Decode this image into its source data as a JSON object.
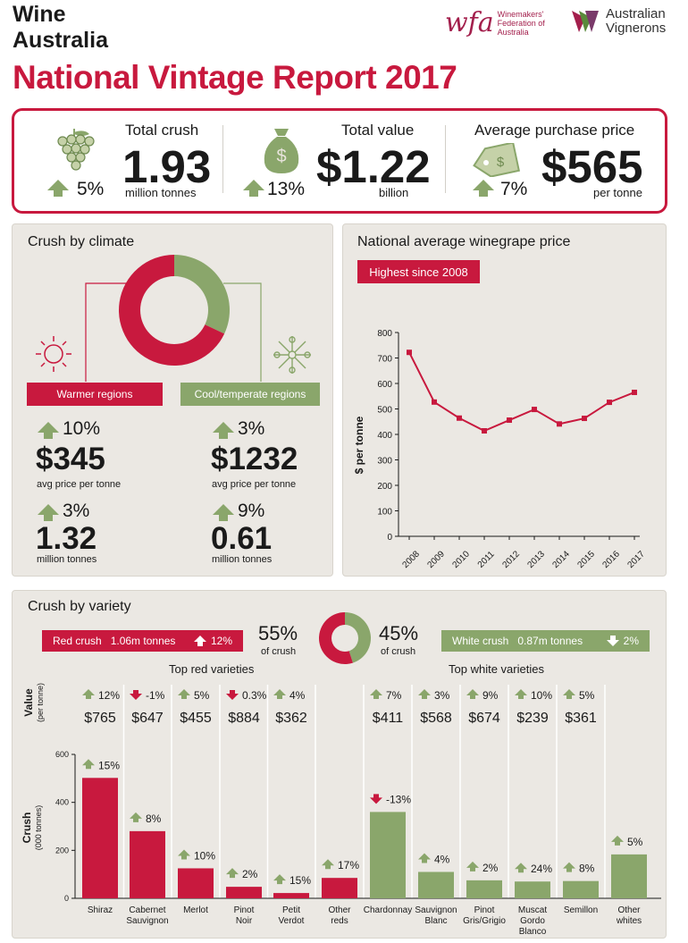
{
  "header": {
    "brand_line1": "Wine",
    "brand_line2": "Australia",
    "title": "National Vintage Report 2017",
    "wfa_mark": "wfa",
    "wfa_text": [
      "Winemakers'",
      "Federation of",
      "Australia"
    ],
    "av_text": [
      "Australian",
      "Vignerons"
    ]
  },
  "kpis": [
    {
      "label": "Total crush",
      "value": "1.93",
      "unit": "million tonnes",
      "change": "5%",
      "direction": "up",
      "icon": "grapes-icon"
    },
    {
      "label": "Total value",
      "value": "$1.22",
      "unit": "billion",
      "change": "13%",
      "direction": "up",
      "icon": "money-bag-icon"
    },
    {
      "label": "Average purchase price",
      "value": "$565",
      "unit": "per tonne",
      "change": "7%",
      "direction": "up",
      "icon": "price-tag-icon"
    }
  ],
  "climate": {
    "title": "Crush by climate",
    "warm": {
      "label": "Warmer regions",
      "price_change": "10%",
      "price": "$345",
      "price_label": "avg price per tonne",
      "crush_change": "3%",
      "crush": "1.32",
      "crush_label": "million tonnes"
    },
    "cool": {
      "label": "Cool/temperate regions",
      "price_change": "3%",
      "price": "$1232",
      "price_label": "avg price per tonne",
      "crush_change": "9%",
      "crush": "0.61",
      "crush_label": "million tonnes"
    }
  },
  "price_panel": {
    "title": "National average winegrape price",
    "badge": "Highest since 2008"
  },
  "variety": {
    "title": "Crush by variety",
    "red_pill": {
      "label": "Red crush",
      "amount": "1.06m tonnes",
      "change": "12%"
    },
    "white_pill": {
      "label": "White crush",
      "amount": "0.87m tonnes",
      "change": "2%"
    },
    "red_share": "55%",
    "white_share": "45%",
    "share_label": "of crush",
    "top_red": "Top red varieties",
    "top_white": "Top white varieties",
    "value_axis": "Value",
    "value_axis_sub": "(per tonne)",
    "crush_axis": "Crush",
    "crush_axis_sub": "(000 tonnes)"
  },
  "colors": {
    "red": "#c8193e",
    "green": "#8aa66b",
    "panel": "#ebe8e3"
  },
  "chart_data": [
    {
      "type": "pie",
      "id": "climate-donut",
      "title": "",
      "slices": [
        {
          "name": "Warmer regions",
          "value": 68,
          "color": "#c8193e"
        },
        {
          "name": "Cool/temperate regions",
          "value": 32,
          "color": "#8aa66b"
        }
      ]
    },
    {
      "type": "line",
      "id": "price-line",
      "title": "National average winegrape price",
      "xlabel": "",
      "ylabel": "$ per tonne",
      "ylim": [
        0,
        800
      ],
      "yticks": [
        0,
        100,
        200,
        300,
        400,
        500,
        600,
        700,
        800
      ],
      "x": [
        "2008",
        "2009",
        "2010",
        "2011",
        "2012",
        "2013",
        "2014",
        "2015",
        "2016",
        "2017"
      ],
      "values": [
        722,
        527,
        464,
        414,
        456,
        498,
        441,
        463,
        526,
        565
      ]
    },
    {
      "type": "pie",
      "id": "variety-donut",
      "slices": [
        {
          "name": "Red crush",
          "value": 55,
          "color": "#c8193e"
        },
        {
          "name": "White crush",
          "value": 45,
          "color": "#8aa66b"
        }
      ]
    },
    {
      "type": "bar",
      "id": "variety-bars",
      "ylabel": "Crush (000 tonnes)",
      "ylim": [
        0,
        600
      ],
      "yticks": [
        0,
        200,
        400,
        600
      ],
      "categories": [
        "Shiraz",
        "Cabernet Sauvignon",
        "Merlot",
        "Pinot Noir",
        "Petit Verdot",
        "Other reds",
        "Chardonnay",
        "Sauvignon Blanc",
        "Pinot Gris/Grigio",
        "Muscat Gordo Blanco",
        "Semillon",
        "Other whites"
      ],
      "labels": [
        [
          "Shiraz"
        ],
        [
          "Cabernet",
          "Sauvignon"
        ],
        [
          "Merlot"
        ],
        [
          "Pinot",
          "Noir"
        ],
        [
          "Petit",
          "Verdot"
        ],
        [
          "Other",
          "reds"
        ],
        [
          "Chardonnay"
        ],
        [
          "Sauvignon",
          "Blanc"
        ],
        [
          "Pinot",
          "Gris/Grigio"
        ],
        [
          "Muscat",
          "Gordo",
          "Blanco"
        ],
        [
          "Semillon"
        ],
        [
          "Other",
          "whites"
        ]
      ],
      "values": [
        502,
        280,
        125,
        48,
        22,
        85,
        360,
        110,
        75,
        70,
        72,
        183
      ],
      "crush_change": [
        "15%",
        "8%",
        "10%",
        "2%",
        "15%",
        "17%",
        "-13%",
        "4%",
        "2%",
        "24%",
        "8%",
        "5%"
      ],
      "crush_direction": [
        "up",
        "up",
        "up",
        "up",
        "up",
        "up",
        "down",
        "up",
        "up",
        "up",
        "up",
        "up"
      ],
      "colors": [
        "#c8193e",
        "#c8193e",
        "#c8193e",
        "#c8193e",
        "#c8193e",
        "#c8193e",
        "#8aa66b",
        "#8aa66b",
        "#8aa66b",
        "#8aa66b",
        "#8aa66b",
        "#8aa66b"
      ],
      "value_change": [
        "12%",
        "-1%",
        "5%",
        "0.3%",
        "4%",
        "",
        "7%",
        "3%",
        "9%",
        "10%",
        "5%",
        ""
      ],
      "value_direction": [
        "up",
        "down",
        "up",
        "down",
        "up",
        "",
        "up",
        "up",
        "up",
        "up",
        "up",
        ""
      ],
      "price": [
        "$765",
        "$647",
        "$455",
        "$884",
        "$362",
        "",
        "$411",
        "$568",
        "$674",
        "$239",
        "$361",
        ""
      ]
    }
  ]
}
